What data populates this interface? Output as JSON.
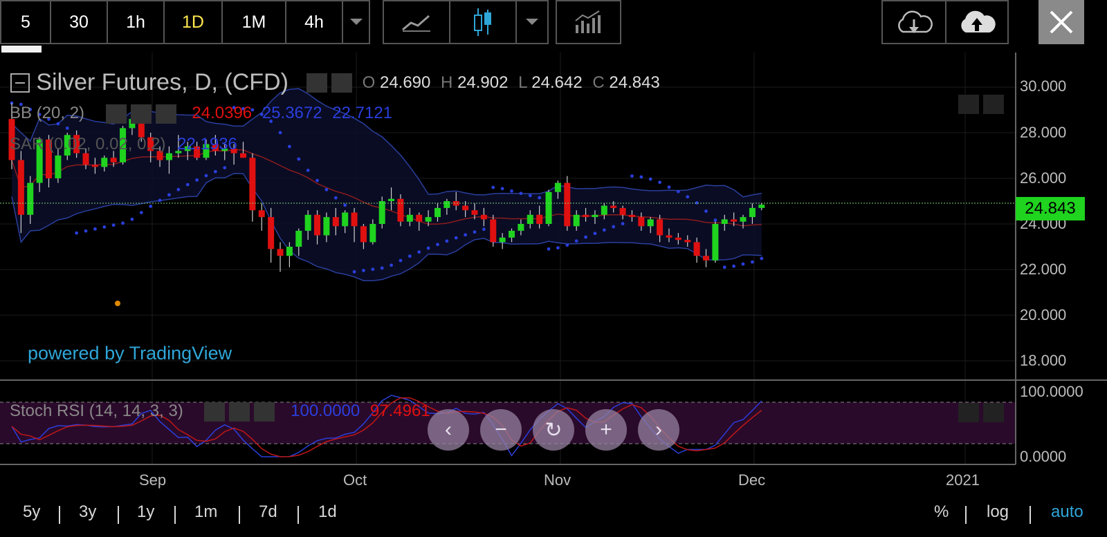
{
  "toolbar": {
    "intervals": [
      "5",
      "30",
      "1h",
      "1D",
      "1M",
      "4h"
    ],
    "active_interval": "1D"
  },
  "legend": {
    "title": "Silver Futures, D, (CFD)",
    "ohlc": {
      "o_label": "O",
      "o": "24.690",
      "h_label": "H",
      "h": "24.902",
      "l_label": "L",
      "l": "24.642",
      "c_label": "C",
      "c": "24.843"
    },
    "bb": {
      "label": "BB (20, 2)",
      "mid": "24.0396",
      "upper": "25.3672",
      "lower": "22.7121"
    },
    "sar": {
      "label": "SAR (0.02, 0.02, 0.2)",
      "value": "22.1936"
    },
    "stoch": {
      "label": "Stoch RSI (14, 14, 3, 3)",
      "k": "100.0000",
      "d": "97.4961"
    }
  },
  "watermark": "powered by TradingView",
  "price_tag": "24.843",
  "y_axis": [
    "30.000",
    "28.000",
    "26.000",
    "24.000",
    "22.000",
    "20.000",
    "18.000"
  ],
  "rsi_axis": [
    "100.0000",
    "0.0000"
  ],
  "x_axis": [
    "Sep",
    "Oct",
    "Nov",
    "Dec",
    "2021"
  ],
  "range_buttons": [
    "5y",
    "3y",
    "1y",
    "1m",
    "7d",
    "1d"
  ],
  "scale_buttons": [
    "%",
    "log",
    "auto"
  ],
  "colors": {
    "up": "#1fd31f",
    "down": "#e01010",
    "bb_band": "#2a3f9e",
    "sar": "#2a3fdc",
    "accent": "#2fa6d8",
    "rsi_zone": "#3a0a3a"
  },
  "icons": [
    "dropdown-icon",
    "line-chart-icon",
    "candlestick-icon",
    "indicators-icon",
    "cloud-download-icon",
    "cloud-upload-icon",
    "close-icon",
    "eye-icon",
    "gear-icon",
    "x-icon"
  ],
  "chart_data": {
    "type": "candlestick",
    "title": "Silver Futures, D, (CFD)",
    "x_ticks": [
      "Sep",
      "Oct",
      "Nov",
      "Dec",
      "2021"
    ],
    "ylim": [
      17.0,
      31.0
    ],
    "ohlc": [
      [
        28.6,
        29.3,
        26.4,
        26.8
      ],
      [
        26.8,
        27.2,
        23.6,
        24.4
      ],
      [
        24.4,
        26.1,
        24.0,
        25.8
      ],
      [
        25.8,
        27.8,
        25.4,
        27.7
      ],
      [
        27.7,
        27.9,
        25.6,
        26.0
      ],
      [
        26.0,
        27.3,
        25.8,
        27.0
      ],
      [
        27.0,
        28.0,
        26.8,
        27.9
      ],
      [
        27.9,
        28.1,
        26.9,
        27.1
      ],
      [
        27.1,
        27.3,
        26.4,
        26.6
      ],
      [
        26.6,
        26.9,
        26.2,
        26.5
      ],
      [
        26.5,
        27.0,
        26.3,
        26.9
      ],
      [
        26.9,
        27.2,
        26.5,
        26.7
      ],
      [
        26.7,
        28.3,
        26.6,
        28.2
      ],
      [
        28.2,
        29.1,
        27.9,
        28.6
      ],
      [
        28.6,
        28.9,
        27.6,
        27.8
      ],
      [
        27.8,
        28.0,
        26.7,
        27.2
      ],
      [
        27.2,
        27.4,
        26.5,
        26.8
      ],
      [
        26.8,
        27.4,
        26.2,
        27.1
      ],
      [
        27.1,
        27.9,
        26.9,
        27.2
      ],
      [
        27.2,
        27.6,
        26.8,
        27.4
      ],
      [
        27.4,
        27.6,
        26.8,
        26.9
      ],
      [
        26.9,
        27.7,
        26.8,
        27.5
      ],
      [
        27.5,
        27.9,
        27.0,
        27.2
      ],
      [
        27.2,
        27.5,
        26.8,
        27.3
      ],
      [
        27.3,
        27.5,
        26.6,
        27.1
      ],
      [
        27.1,
        27.6,
        26.9,
        26.9
      ],
      [
        26.9,
        27.1,
        24.1,
        24.6
      ],
      [
        24.6,
        24.9,
        23.7,
        24.3
      ],
      [
        24.3,
        24.7,
        22.3,
        22.9
      ],
      [
        22.9,
        23.2,
        21.9,
        22.6
      ],
      [
        22.6,
        23.2,
        22.1,
        23.0
      ],
      [
        23.0,
        23.8,
        22.6,
        23.7
      ],
      [
        23.7,
        24.6,
        23.3,
        24.4
      ],
      [
        24.4,
        24.6,
        23.1,
        23.5
      ],
      [
        23.5,
        24.5,
        23.2,
        24.3
      ],
      [
        24.3,
        24.7,
        23.5,
        23.9
      ],
      [
        23.9,
        24.6,
        23.6,
        24.5
      ],
      [
        24.5,
        24.7,
        23.2,
        23.9
      ],
      [
        23.9,
        24.0,
        22.9,
        23.2
      ],
      [
        23.2,
        24.2,
        23.1,
        24.0
      ],
      [
        24.0,
        25.2,
        23.8,
        25.0
      ],
      [
        25.0,
        25.6,
        24.6,
        25.1
      ],
      [
        25.1,
        25.3,
        23.9,
        24.1
      ],
      [
        24.1,
        24.7,
        23.9,
        24.4
      ],
      [
        24.4,
        24.5,
        23.7,
        24.1
      ],
      [
        24.1,
        24.6,
        23.9,
        24.3
      ],
      [
        24.3,
        24.9,
        24.1,
        24.7
      ],
      [
        24.7,
        25.1,
        24.4,
        25.0
      ],
      [
        25.0,
        25.4,
        24.6,
        24.8
      ],
      [
        24.8,
        25.0,
        24.3,
        24.6
      ],
      [
        24.6,
        24.9,
        24.2,
        24.4
      ],
      [
        24.4,
        24.7,
        23.9,
        24.2
      ],
      [
        24.2,
        24.4,
        23.0,
        23.2
      ],
      [
        23.2,
        23.6,
        22.9,
        23.4
      ],
      [
        23.4,
        23.8,
        23.2,
        23.7
      ],
      [
        23.7,
        24.2,
        23.5,
        24.0
      ],
      [
        24.0,
        24.6,
        23.8,
        24.4
      ],
      [
        24.4,
        24.8,
        23.8,
        24.0
      ],
      [
        24.0,
        25.5,
        23.9,
        25.4
      ],
      [
        25.4,
        25.9,
        25.1,
        25.8
      ],
      [
        25.8,
        26.1,
        23.7,
        23.9
      ],
      [
        23.9,
        24.6,
        23.7,
        24.4
      ],
      [
        24.4,
        24.7,
        24.1,
        24.3
      ],
      [
        24.3,
        24.6,
        24.0,
        24.4
      ],
      [
        24.4,
        24.9,
        24.2,
        24.8
      ],
      [
        24.8,
        25.0,
        24.5,
        24.7
      ],
      [
        24.7,
        24.8,
        24.2,
        24.4
      ],
      [
        24.4,
        24.6,
        24.1,
        24.3
      ],
      [
        24.3,
        24.5,
        23.7,
        23.9
      ],
      [
        23.9,
        24.3,
        23.6,
        24.2
      ],
      [
        24.2,
        24.4,
        23.2,
        23.5
      ],
      [
        23.5,
        23.8,
        23.2,
        23.4
      ],
      [
        23.4,
        23.6,
        23.1,
        23.3
      ],
      [
        23.3,
        23.5,
        23.0,
        23.2
      ],
      [
        23.2,
        23.4,
        22.3,
        22.6
      ],
      [
        22.6,
        22.9,
        22.1,
        22.4
      ],
      [
        22.4,
        24.1,
        22.3,
        24.0
      ],
      [
        24.0,
        24.4,
        23.7,
        24.2
      ],
      [
        24.2,
        24.5,
        23.9,
        24.1
      ],
      [
        24.1,
        24.4,
        23.8,
        24.3
      ],
      [
        24.3,
        24.9,
        24.0,
        24.7
      ],
      [
        24.7,
        24.9,
        24.6,
        24.843
      ]
    ]
  }
}
